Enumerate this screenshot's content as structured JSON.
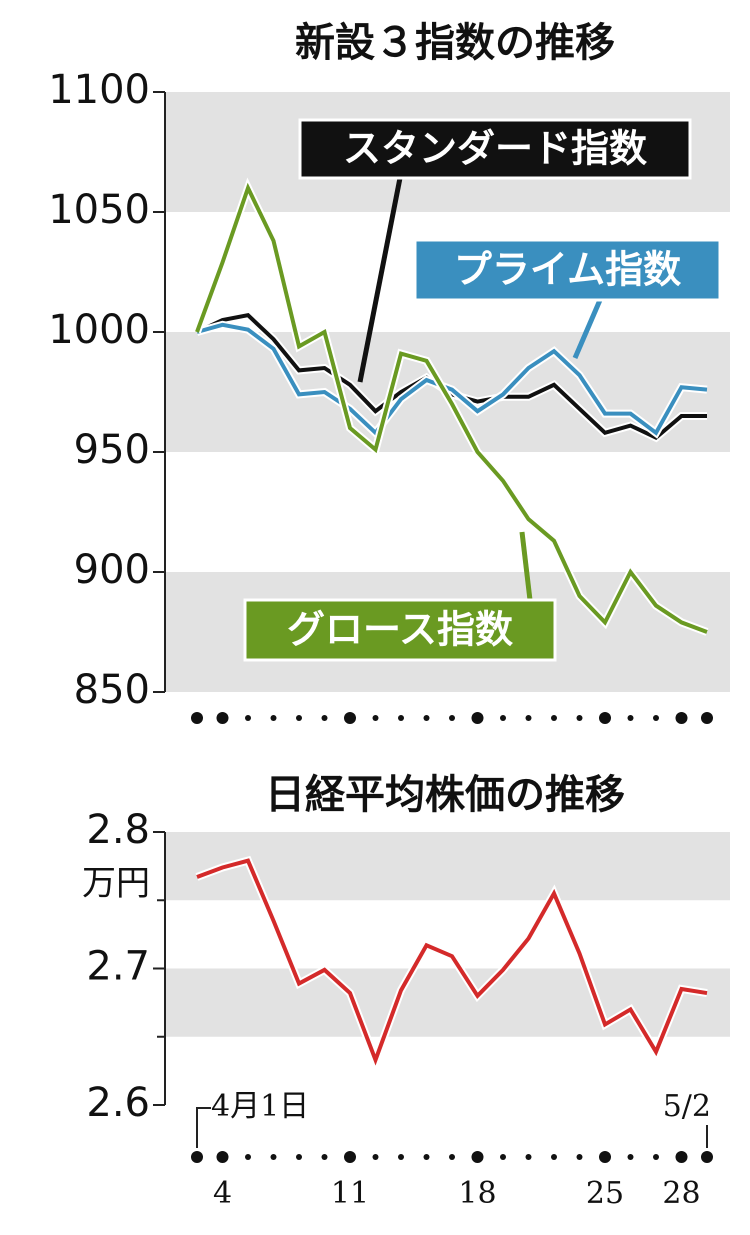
{
  "chart_data": [
    {
      "type": "line",
      "title": "新設３指数の推移",
      "ylim": [
        850,
        1100
      ],
      "yticks": [
        850,
        900,
        950,
        1000,
        1050,
        1100
      ],
      "bands": true,
      "series": [
        {
          "name": "スタンダード指数",
          "color": "#111111",
          "values": [
            1000,
            1005,
            1007,
            997,
            984,
            985,
            978,
            967,
            975,
            981,
            974,
            971,
            973,
            973,
            978,
            968,
            958,
            961,
            956,
            965,
            965
          ]
        },
        {
          "name": "プライム指数",
          "color": "#3a8fbf",
          "values": [
            1000,
            1003,
            1001,
            993,
            974,
            975,
            968,
            958,
            972,
            980,
            976,
            967,
            974,
            985,
            992,
            982,
            966,
            966,
            958,
            977,
            976
          ]
        },
        {
          "name": "グロース指数",
          "color": "#6a9a22",
          "values": [
            1000,
            1029,
            1060,
            1038,
            994,
            1000,
            960,
            951,
            991,
            988,
            970,
            950,
            938,
            922,
            913,
            890,
            879,
            900,
            886,
            879,
            875
          ]
        }
      ]
    },
    {
      "type": "line",
      "title": "日経平均株価の推移",
      "y_unit": "万円",
      "ylim": [
        2.6,
        2.8
      ],
      "yticks": [
        2.6,
        2.7,
        2.8
      ],
      "yminor": [
        2.65,
        2.75
      ],
      "bands": true,
      "categories": [
        "4月1日",
        "4",
        null,
        null,
        null,
        null,
        "11",
        null,
        null,
        null,
        null,
        "18",
        null,
        null,
        null,
        null,
        "25",
        null,
        null,
        "28",
        "5/2"
      ],
      "series": [
        {
          "name": null,
          "color": "#d42a2a",
          "values": [
            2.767,
            2.774,
            2.779,
            2.735,
            2.689,
            2.699,
            2.682,
            2.633,
            2.684,
            2.717,
            2.709,
            2.68,
            2.699,
            2.722,
            2.755,
            2.711,
            2.659,
            2.67,
            2.639,
            2.685,
            2.682
          ]
        }
      ]
    }
  ]
}
